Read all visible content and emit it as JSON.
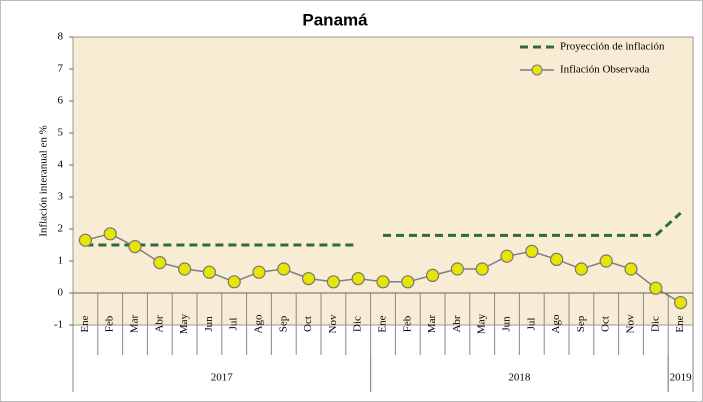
{
  "chart_data": {
    "type": "line",
    "title": "Panamá",
    "y_label": "Inflación interanual en %",
    "groups": [
      {
        "label": "2017",
        "categories": [
          "Ene",
          "Feb",
          "Mar",
          "Abr",
          "May",
          "Jun",
          "Jul",
          "Ago",
          "Sep",
          "Oct",
          "Nov",
          "Dic"
        ]
      },
      {
        "label": "2018",
        "categories": [
          "Ene",
          "Feb",
          "Mar",
          "Abr",
          "May",
          "Jun",
          "Jul",
          "Ago",
          "Sep",
          "Oct",
          "Nov",
          "Dic"
        ]
      },
      {
        "label": "2019",
        "categories": [
          "Ene"
        ]
      }
    ],
    "series": [
      {
        "name": "Proyección de inflación",
        "color": "#2e6b3a",
        "dashed": true,
        "values": [
          1.5,
          1.5,
          1.5,
          1.5,
          1.5,
          1.5,
          1.5,
          1.5,
          1.5,
          1.5,
          1.5,
          1.5,
          null,
          null,
          null,
          null,
          null,
          null,
          null,
          null,
          null,
          null,
          null,
          null,
          null
        ]
      },
      {
        "color": "#2e6b3a",
        "dashed": true,
        "values": [
          null,
          null,
          null,
          null,
          null,
          null,
          null,
          null,
          null,
          null,
          null,
          null,
          1.8,
          1.8,
          1.8,
          1.8,
          1.8,
          1.8,
          1.8,
          1.8,
          1.8,
          1.8,
          1.8,
          1.8,
          2.5
        ]
      },
      {
        "name": "Inflación Observada",
        "color": "#7f7f7f",
        "marker_color": "#e6e600",
        "markers": true,
        "values": [
          1.65,
          1.85,
          1.45,
          0.95,
          0.75,
          0.65,
          0.35,
          0.65,
          0.75,
          0.45,
          0.35,
          0.45,
          0.35,
          0.35,
          0.55,
          0.75,
          0.75,
          1.15,
          1.3,
          1.05,
          0.75,
          1.0,
          0.75,
          0.15,
          -0.3
        ]
      }
    ],
    "ylim": [
      -1,
      8
    ],
    "yticks": [
      -1,
      0,
      1,
      2,
      3,
      4,
      5,
      6,
      7,
      8
    ],
    "legend": "top-right",
    "background": "#f8ecd4"
  }
}
